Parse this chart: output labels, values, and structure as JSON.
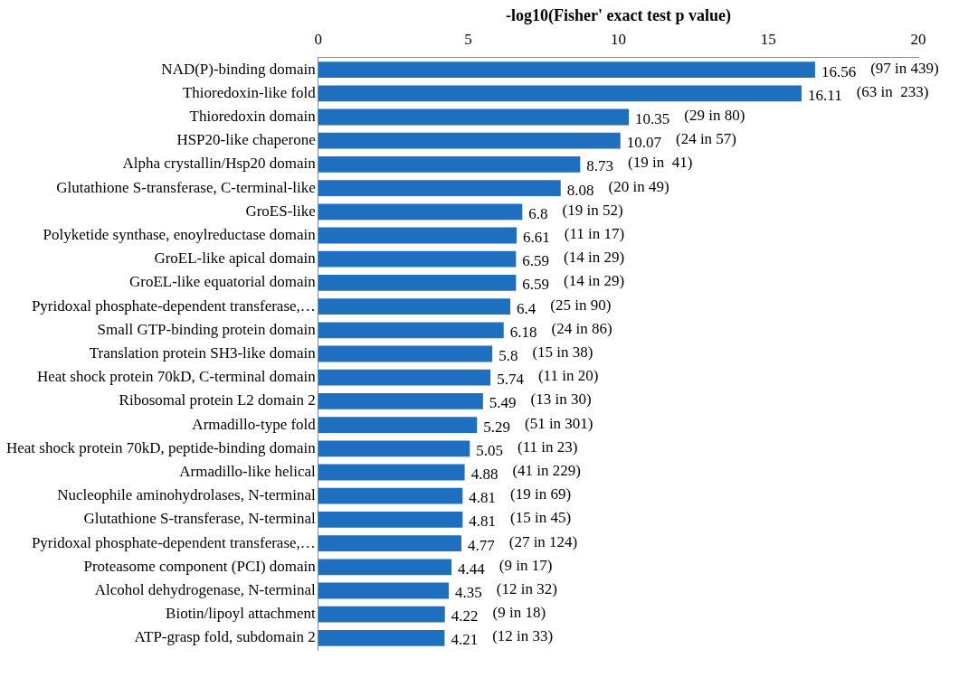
{
  "chart_data": {
    "type": "bar",
    "orientation": "horizontal",
    "xlabel": "-log10(Fisher' exact test p value)",
    "categories": [
      "NAD(P)-binding domain",
      "Thioredoxin-like fold",
      "Thioredoxin domain",
      "HSP20-like chaperone",
      "Alpha crystallin/Hsp20 domain",
      "Glutathione S-transferase, C-terminal-like",
      "GroES-like",
      "Polyketide synthase, enoylreductase domain",
      "GroEL-like apical domain",
      "GroEL-like equatorial domain",
      "Pyridoxal phosphate-dependent transferase,…",
      "Small GTP-binding protein domain",
      "Translation protein SH3-like domain",
      "Heat shock protein 70kD, C-terminal domain",
      "Ribosomal protein L2 domain 2",
      "Armadillo-type fold",
      "Heat shock protein 70kD, peptide-binding domain",
      "Armadillo-like helical",
      "Nucleophile aminohydrolases, N-terminal",
      "Glutathione S-transferase, N-terminal",
      "Pyridoxal phosphate-dependent transferase,…",
      "Proteasome component (PCI) domain",
      "Alcohol dehydrogenase, N-terminal",
      "Biotin/lipoyl attachment",
      "ATP-grasp fold, subdomain 2"
    ],
    "values": [
      16.56,
      16.11,
      10.35,
      10.07,
      8.73,
      8.08,
      6.8,
      6.61,
      6.59,
      6.59,
      6.4,
      6.18,
      5.8,
      5.74,
      5.49,
      5.29,
      5.05,
      4.88,
      4.81,
      4.81,
      4.77,
      4.44,
      4.35,
      4.22,
      4.21
    ],
    "color": "#1f6fc0",
    "xlim": [
      0,
      20
    ],
    "xticks": [
      0,
      5,
      10,
      15,
      20
    ],
    "data_labels": true,
    "grid": false,
    "legend": false,
    "annotations": [
      "(97 in 439)",
      "(63 in  233)",
      "(29 in 80)",
      "(24 in 57)",
      "(19 in  41)",
      "(20 in 49)",
      "(19 in 52)",
      "(11 in 17)",
      "(14 in 29)",
      "(14 in 29)",
      "(25 in 90)",
      "(24 in 86)",
      "(15 in 38)",
      "(11 in 20)",
      "(13 in 30)",
      "(51 in 301)",
      "(11 in 23)",
      "(41 in 229)",
      "(19 in 69)",
      "(15 in 45)",
      "(27 in 124)",
      "(9 in 17)",
      "(12 in 32)",
      "(9 in 18)",
      "(12 in 33)"
    ]
  }
}
